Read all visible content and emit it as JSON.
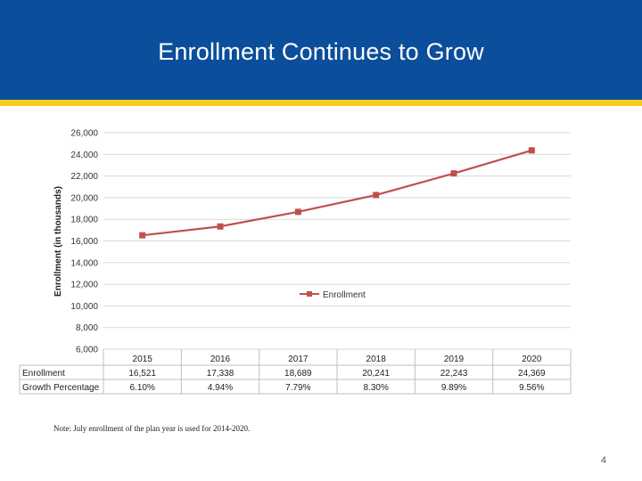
{
  "slide": {
    "title": "Enrollment Continues to Grow",
    "note": "Note: July enrollment of the plan year is used for 2014-2020.",
    "page_number": "4"
  },
  "colors": {
    "header_bg": "#0b4e9b",
    "stripe": "#f7cd1a",
    "series_line": "#c0504d",
    "grid": "#d9d9d9"
  },
  "chart_data": {
    "type": "line",
    "title": "",
    "xlabel": "",
    "ylabel": "Enrollment (in thousands)",
    "ylim": [
      6000,
      26000
    ],
    "yticks": [
      6000,
      8000,
      10000,
      12000,
      14000,
      16000,
      18000,
      20000,
      22000,
      24000,
      26000
    ],
    "ytick_labels": [
      "6,000",
      "8,000",
      "10,000",
      "12,000",
      "14,000",
      "16,000",
      "18,000",
      "20,000",
      "22,000",
      "24,000",
      "26,000"
    ],
    "categories": [
      "2015",
      "2016",
      "2017",
      "2018",
      "2019",
      "2020"
    ],
    "grid": true,
    "legend": "center-right",
    "series": [
      {
        "name": "Enrollment",
        "values": [
          16521,
          17338,
          18689,
          20241,
          22243,
          24369
        ],
        "value_labels": [
          "16,521",
          "17,338",
          "18,689",
          "20,241",
          "22,243",
          "24,369"
        ]
      }
    ],
    "data_table": {
      "rows": [
        {
          "label": "Enrollment",
          "values": [
            "16,521",
            "17,338",
            "18,689",
            "20,241",
            "22,243",
            "24,369"
          ]
        },
        {
          "label": "Growth Percentage",
          "values": [
            "6.10%",
            "4.94%",
            "7.79%",
            "8.30%",
            "9.89%",
            "9.56%"
          ]
        }
      ]
    }
  }
}
